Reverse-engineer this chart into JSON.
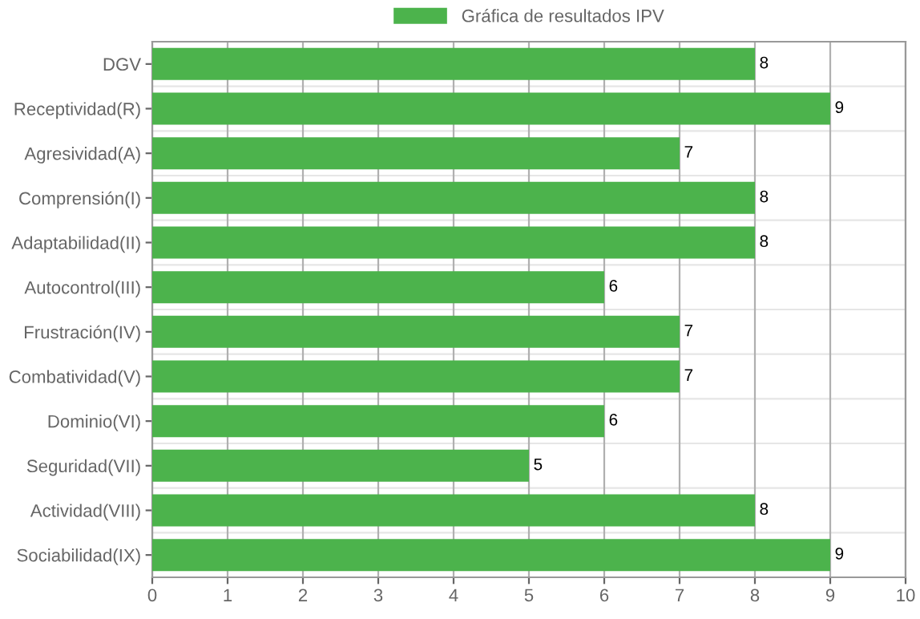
{
  "chart_data": {
    "type": "bar",
    "orientation": "horizontal",
    "categories": [
      "DGV",
      "Receptividad(R)",
      "Agresividad(A)",
      "Comprensión(I)",
      "Adaptabilidad(II)",
      "Autocontrol(III)",
      "Frustración(IV)",
      "Combatividad(V)",
      "Dominio(VI)",
      "Seguridad(VII)",
      "Actividad(VIII)",
      "Sociabilidad(IX)"
    ],
    "series": [
      {
        "name": "Gráfica de resultados IPV",
        "color": "#4cb34c",
        "values": [
          8,
          9,
          7,
          8,
          8,
          6,
          7,
          7,
          6,
          5,
          8,
          9
        ]
      }
    ],
    "xlim": [
      0,
      10
    ],
    "xticks": [
      0,
      1,
      2,
      3,
      4,
      5,
      6,
      7,
      8,
      9,
      10
    ],
    "data_labels": true,
    "grid": true,
    "legend": "top"
  }
}
